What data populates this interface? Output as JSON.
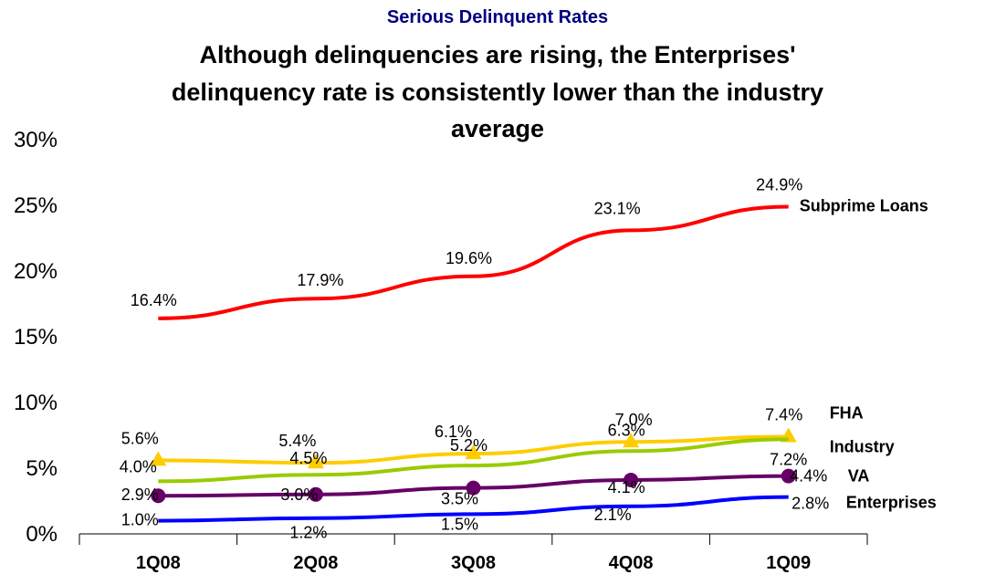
{
  "chart_data": {
    "type": "line",
    "subtitle": "Serious Delinquent Rates",
    "title_lines": [
      "Although delinquencies are rising, the Enterprises'",
      "delinquency rate is consistently lower than the industry",
      "average"
    ],
    "categories": [
      "1Q08",
      "2Q08",
      "3Q08",
      "4Q08",
      "1Q09"
    ],
    "ylim": [
      0,
      30
    ],
    "yticks": [
      "0%",
      "5%",
      "10%",
      "15%",
      "20%",
      "25%",
      "30%"
    ],
    "grid": false,
    "legend": "inline labels at right end of each line",
    "series": [
      {
        "name": "Subprime Loans",
        "color": "#ff0000",
        "marker": "none",
        "values": [
          16.4,
          17.9,
          19.6,
          23.1,
          24.9
        ],
        "labels": [
          "16.4%",
          "17.9%",
          "19.6%",
          "23.1%",
          "24.9%"
        ]
      },
      {
        "name": "FHA",
        "color": "#ffcc00",
        "marker": "triangle",
        "values": [
          5.6,
          5.4,
          6.1,
          7.0,
          7.4
        ],
        "labels": [
          "5.6%",
          "5.4%",
          "6.1%",
          "7.0%",
          "7.4%"
        ]
      },
      {
        "name": "Industry",
        "color": "#99cc00",
        "marker": "none",
        "values": [
          4.0,
          4.5,
          5.2,
          6.3,
          7.2
        ],
        "labels": [
          "4.0%",
          "4.5%",
          "5.2%",
          "6.3%",
          "7.2%"
        ]
      },
      {
        "name": "VA",
        "color": "#660066",
        "marker": "circle",
        "values": [
          2.9,
          3.0,
          3.5,
          4.1,
          4.4
        ],
        "labels": [
          "2.9%",
          "3.0%",
          "3.5%",
          "4.1%",
          "4.4%"
        ]
      },
      {
        "name": "Enterprises",
        "color": "#0000ff",
        "marker": "none",
        "values": [
          1.0,
          1.2,
          1.5,
          2.1,
          2.8
        ],
        "labels": [
          "1.0%",
          "1.2%",
          "1.5%",
          "2.1%",
          "2.8%"
        ]
      }
    ]
  },
  "colors": {
    "subtitle": "#000080",
    "axis": "#000000"
  }
}
